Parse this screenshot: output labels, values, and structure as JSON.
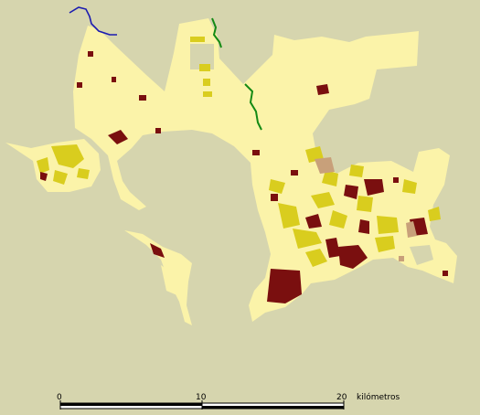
{
  "map": {
    "colors": {
      "background": "#d6d5ae",
      "land": "#fbf3a9",
      "urban_yellow": "#d9cd1e",
      "urban_dark": "#7a0f0f",
      "urban_tan": "#c8a07a",
      "river_blue": "#1b1bb0",
      "river_green": "#148a14"
    },
    "scale": {
      "label_0": "0",
      "label_10": "10",
      "label_20": "20",
      "unit": "kilómetros"
    }
  }
}
